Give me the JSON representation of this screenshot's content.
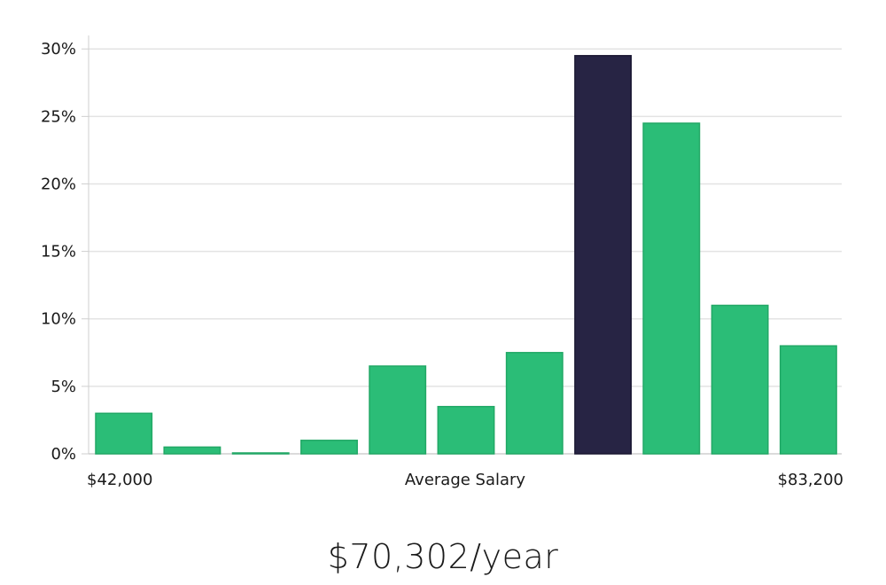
{
  "chart_data": {
    "type": "bar",
    "categories": [
      "1",
      "2",
      "3",
      "4",
      "5",
      "6",
      "7",
      "8",
      "9",
      "10",
      "11"
    ],
    "values": [
      3,
      0.5,
      0.05,
      1,
      6.5,
      3.5,
      7.5,
      29.5,
      24.5,
      11,
      8
    ],
    "highlight_index": 7,
    "ylim": [
      0,
      31
    ],
    "yticks": [
      0,
      5,
      10,
      15,
      20,
      25,
      30
    ],
    "ytick_suffix": "%",
    "grid": true,
    "xlabel": "Average Salary",
    "x_min_label": "$42,000",
    "x_max_label": "$83,200",
    "colors": {
      "bar": "#2bbd77",
      "bar_edge": "#22a866",
      "highlight": "#272444",
      "grid": "#e3e3e3",
      "axis": "#cfcfcf"
    }
  },
  "summary": {
    "salary_text": "$70,302/year"
  }
}
